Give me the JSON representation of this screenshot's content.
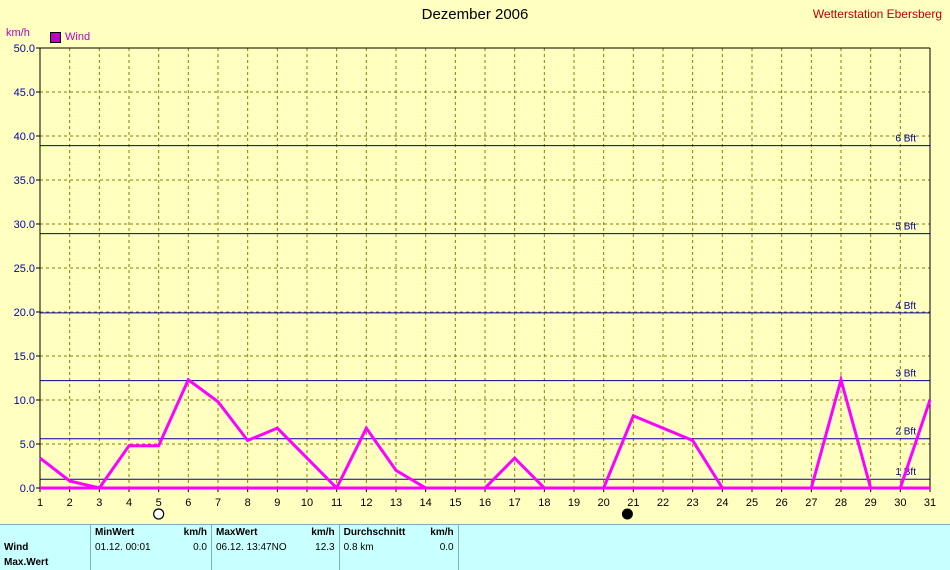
{
  "title": "Dezember 2006",
  "station": "Wetterstation Ebersberg",
  "unit": "km/h",
  "legend_label": "Wind",
  "colors": {
    "series": "#ff00ff",
    "bft_line": "#0000a0",
    "grid": "#808000",
    "background": "#ffffc0",
    "panel": "#c8ffff"
  },
  "chart_data": {
    "type": "line",
    "title": "Dezember 2006",
    "ylabel": "km/h",
    "ylim": [
      0,
      50
    ],
    "xlim": [
      1,
      31
    ],
    "y_ticks": [
      "0.0",
      "5.0",
      "10.0",
      "15.0",
      "20.0",
      "25.0",
      "30.0",
      "35.0",
      "40.0",
      "45.0",
      "50.0"
    ],
    "x_ticks": [
      "1",
      "2",
      "3",
      "4",
      "5",
      "6",
      "7",
      "8",
      "9",
      "10",
      "11",
      "12",
      "13",
      "14",
      "15",
      "16",
      "17",
      "18",
      "19",
      "20",
      "21",
      "22",
      "23",
      "24",
      "25",
      "26",
      "27",
      "28",
      "29",
      "30",
      "31"
    ],
    "grid": true,
    "legend_position": "top-left",
    "series": [
      {
        "name": "Wind",
        "x": [
          1,
          2,
          3,
          4,
          5,
          6,
          7,
          8,
          9,
          10,
          11,
          12,
          13,
          14,
          15,
          16,
          17,
          18,
          19,
          20,
          21,
          22,
          23,
          24,
          25,
          26,
          27,
          28,
          29,
          30,
          31
        ],
        "values": [
          3.4,
          0.8,
          0.0,
          4.8,
          4.8,
          12.3,
          9.8,
          5.4,
          6.8,
          3.4,
          0.0,
          6.8,
          2.0,
          0.0,
          0.0,
          0.0,
          3.4,
          0.0,
          0.0,
          0.0,
          8.2,
          6.8,
          5.4,
          0.0,
          0.0,
          0.0,
          0.0,
          12.3,
          0.0,
          0.0,
          10.0
        ]
      }
    ],
    "beaufort_lines": [
      {
        "label": "1 Bft",
        "value": 1.0
      },
      {
        "label": "2 Bft",
        "value": 5.6
      },
      {
        "label": "3 Bft",
        "value": 12.2
      },
      {
        "label": "4 Bft",
        "value": 19.9
      },
      {
        "label": "5 Bft",
        "value": 28.9
      },
      {
        "label": "6 Bft",
        "value": 38.9
      }
    ],
    "moon_phases": [
      {
        "day": 5,
        "phase": "full"
      },
      {
        "day": 20.8,
        "phase": "new"
      }
    ]
  },
  "stats": {
    "headers": {
      "min": "MinWert",
      "min_unit": "km/h",
      "max": "MaxWert",
      "max_unit": "km/h",
      "avg": "Durchschnitt",
      "avg_unit": "km/h"
    },
    "rows": [
      {
        "label": "Wind",
        "min_time": "01.12.  00:01",
        "min_val": "0.0",
        "max_time": "06.12.  13:47NO",
        "max_val": "12.3",
        "avg_text": "0.8 km",
        "avg_val": "0.0"
      },
      {
        "label": "Max.Wert",
        "min_time": "",
        "min_val": "",
        "max_time": "",
        "max_val": "",
        "avg_text": "",
        "avg_val": ""
      }
    ]
  }
}
